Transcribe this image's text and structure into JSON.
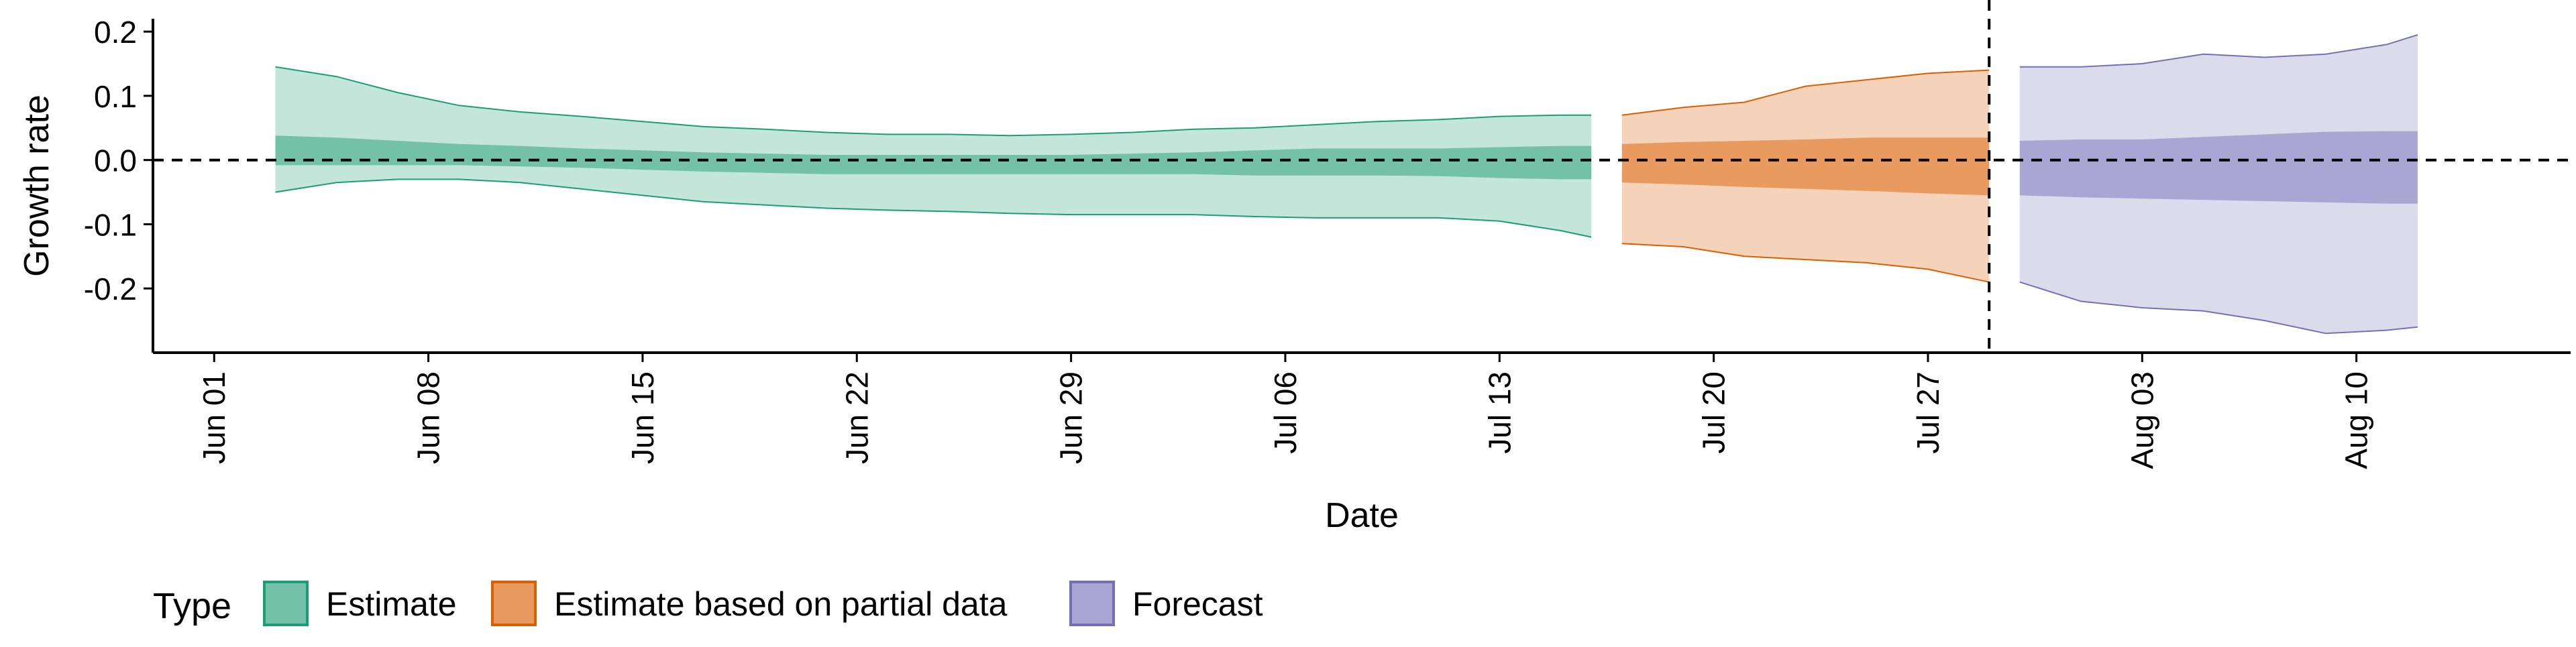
{
  "chart_data": {
    "type": "area",
    "xlabel": "Date",
    "ylabel": "Growth rate",
    "x_axis": {
      "type": "date",
      "range": [
        "2020-05-30",
        "2020-08-17"
      ],
      "ticks": [
        "2020-06-01",
        "2020-06-08",
        "2020-06-15",
        "2020-06-22",
        "2020-06-29",
        "2020-07-06",
        "2020-07-13",
        "2020-07-20",
        "2020-07-27",
        "2020-08-03",
        "2020-08-10"
      ],
      "tick_labels": [
        "Jun 01",
        "Jun 08",
        "Jun 15",
        "Jun 22",
        "Jun 29",
        "Jul 06",
        "Jul 13",
        "Jul 20",
        "Jul 27",
        "Aug 03",
        "Aug 10"
      ]
    },
    "y_axis": {
      "range": [
        -0.3,
        0.22
      ],
      "ticks": [
        -0.2,
        -0.1,
        0.0,
        0.1,
        0.2
      ],
      "tick_labels": [
        "-0.2",
        "-0.1",
        "0.0",
        "0.1",
        "0.2"
      ]
    },
    "reference_lines": [
      {
        "axis": "y",
        "value": 0.0,
        "style": "dashed"
      },
      {
        "axis": "x",
        "value": "2020-07-29",
        "style": "dashed"
      }
    ],
    "legend": {
      "title": "Type",
      "position": "bottom-left",
      "items": [
        {
          "label": "Estimate",
          "fill": "#73c1a6",
          "stroke": "#1b9e77"
        },
        {
          "label": "Estimate based on partial data",
          "fill": "#e99b5f",
          "stroke": "#d95f02"
        },
        {
          "label": "Forecast",
          "fill": "#a9a6d3",
          "stroke": "#7570b3"
        }
      ]
    },
    "series": [
      {
        "name": "Estimate",
        "color": "#1b9e77",
        "outer_fill": "#c4e6da",
        "inner_fill": "#73c1a6",
        "x": [
          "2020-06-03",
          "2020-06-05",
          "2020-06-07",
          "2020-06-09",
          "2020-06-11",
          "2020-06-13",
          "2020-06-15",
          "2020-06-17",
          "2020-06-19",
          "2020-06-21",
          "2020-06-23",
          "2020-06-25",
          "2020-06-27",
          "2020-06-29",
          "2020-07-01",
          "2020-07-03",
          "2020-07-05",
          "2020-07-07",
          "2020-07-09",
          "2020-07-11",
          "2020-07-13",
          "2020-07-15",
          "2020-07-16"
        ],
        "outer_upper": [
          0.145,
          0.13,
          0.105,
          0.085,
          0.075,
          0.068,
          0.06,
          0.052,
          0.048,
          0.043,
          0.04,
          0.04,
          0.038,
          0.04,
          0.043,
          0.048,
          0.05,
          0.055,
          0.06,
          0.063,
          0.068,
          0.07,
          0.07
        ],
        "outer_lower": [
          -0.05,
          -0.035,
          -0.03,
          -0.03,
          -0.035,
          -0.045,
          -0.055,
          -0.065,
          -0.07,
          -0.075,
          -0.078,
          -0.08,
          -0.083,
          -0.085,
          -0.085,
          -0.085,
          -0.088,
          -0.09,
          -0.09,
          -0.09,
          -0.095,
          -0.11,
          -0.12
        ],
        "inner_upper": [
          0.038,
          0.035,
          0.03,
          0.025,
          0.022,
          0.018,
          0.015,
          0.012,
          0.01,
          0.008,
          0.008,
          0.008,
          0.008,
          0.008,
          0.01,
          0.012,
          0.015,
          0.018,
          0.018,
          0.018,
          0.02,
          0.022,
          0.022
        ],
        "inner_lower": [
          -0.008,
          -0.008,
          -0.008,
          -0.008,
          -0.01,
          -0.012,
          -0.015,
          -0.018,
          -0.02,
          -0.022,
          -0.022,
          -0.022,
          -0.022,
          -0.022,
          -0.022,
          -0.022,
          -0.024,
          -0.024,
          -0.024,
          -0.025,
          -0.028,
          -0.03,
          -0.03
        ]
      },
      {
        "name": "Estimate based on partial data",
        "color": "#d95f02",
        "outer_fill": "#f5d3bb",
        "inner_fill": "#e99b5f",
        "x": [
          "2020-07-17",
          "2020-07-19",
          "2020-07-21",
          "2020-07-23",
          "2020-07-25",
          "2020-07-27",
          "2020-07-29"
        ],
        "outer_upper": [
          0.07,
          0.082,
          0.09,
          0.115,
          0.125,
          0.135,
          0.14
        ],
        "outer_lower": [
          -0.13,
          -0.135,
          -0.15,
          -0.155,
          -0.16,
          -0.17,
          -0.19
        ],
        "inner_upper": [
          0.025,
          0.028,
          0.03,
          0.032,
          0.035,
          0.035,
          0.035
        ],
        "inner_lower": [
          -0.035,
          -0.038,
          -0.042,
          -0.045,
          -0.048,
          -0.052,
          -0.055
        ]
      },
      {
        "name": "Forecast",
        "color": "#7570b3",
        "outer_fill": "#dcdbeb",
        "inner_fill": "#a9a6d3",
        "x": [
          "2020-07-30",
          "2020-08-01",
          "2020-08-03",
          "2020-08-05",
          "2020-08-07",
          "2020-08-09",
          "2020-08-11",
          "2020-08-12"
        ],
        "outer_upper": [
          0.145,
          0.145,
          0.15,
          0.165,
          0.16,
          0.165,
          0.18,
          0.195
        ],
        "outer_lower": [
          -0.19,
          -0.22,
          -0.23,
          -0.235,
          -0.25,
          -0.27,
          -0.265,
          -0.26
        ],
        "inner_upper": [
          0.03,
          0.032,
          0.032,
          0.036,
          0.04,
          0.044,
          0.045,
          0.045
        ],
        "inner_lower": [
          -0.055,
          -0.058,
          -0.06,
          -0.062,
          -0.064,
          -0.066,
          -0.068,
          -0.068
        ]
      }
    ]
  }
}
